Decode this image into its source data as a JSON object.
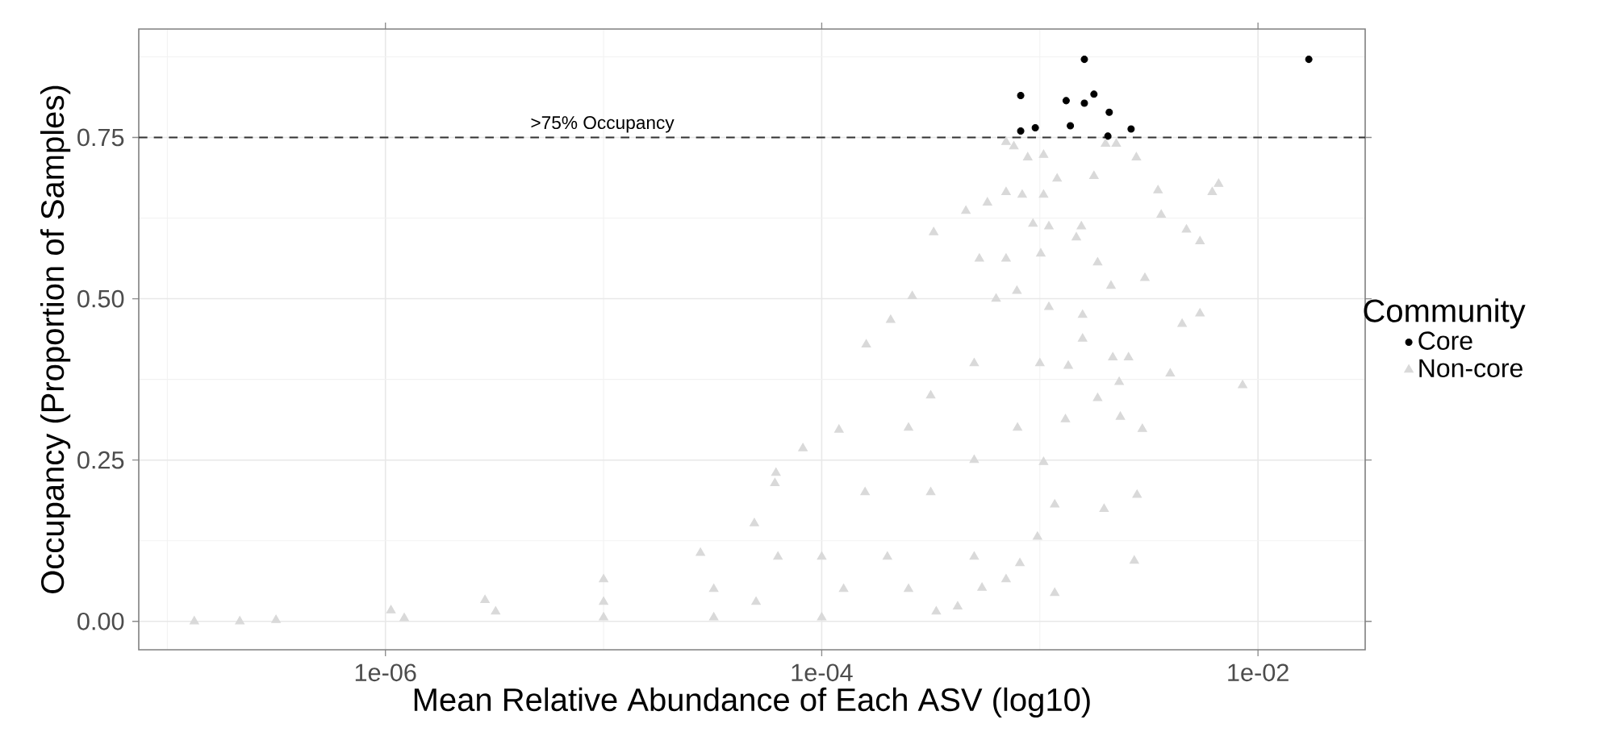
{
  "chart_data": {
    "type": "scatter",
    "xlabel": "Mean Relative Abundance of Each ASV (log10)",
    "ylabel": "Occupancy (Proportion of Samples)",
    "legend_title": "Community",
    "log": "x",
    "xlim": [
      7.4e-08,
      0.031
    ],
    "ylim": [
      -0.044,
      0.918
    ],
    "xticks": [
      {
        "value": 1e-06,
        "label": "1e-06"
      },
      {
        "value": 0.0001,
        "label": "1e-04"
      },
      {
        "value": 0.01,
        "label": "1e-02"
      }
    ],
    "yticks": [
      {
        "value": 0,
        "label": "0.00"
      },
      0.25,
      {
        "value": 0.5,
        "label": "0.50"
      },
      0.75
    ],
    "grid": true,
    "legend": "right",
    "ref_lines": [
      {
        "axis": "y",
        "value": 0.75,
        "label": ">75% Occupancy",
        "color": "#333333",
        "line_style": "dashed"
      }
    ],
    "series": [
      {
        "name": "Core",
        "color": "#000000",
        "marker": "circle",
        "x": [
          0.0016,
          0.0171,
          0.000817,
          0.00132,
          0.0016,
          0.00177,
          0.00208,
          0.000817,
          0.000953,
          0.00138,
          0.00205,
          0.00262
        ],
        "values": [
          0.871,
          0.871,
          0.815,
          0.807,
          0.803,
          0.817,
          0.789,
          0.76,
          0.765,
          0.768,
          0.752,
          0.763
        ]
      },
      {
        "name": "Non-core",
        "color": "#d9d9d9",
        "marker": "triangle",
        "x": [
          1.33e-07,
          2.15e-07,
          3.15e-07,
          1.06e-06,
          1.22e-06,
          2.86e-06,
          3.2e-06,
          1e-05,
          1e-05,
          1e-05,
          2.78e-05,
          3.2e-05,
          3.2e-05,
          4.91e-05,
          5e-05,
          6.17e-05,
          6.3e-05,
          8.2e-05,
          6.1e-05,
          0.0001,
          0.0001,
          0.00012,
          0.000126,
          0.000158,
          0.00016,
          0.0002,
          0.000207,
          0.00025,
          0.00025,
          0.00026,
          0.000316,
          0.000316,
          0.000326,
          0.000335,
          0.00042,
          0.000458,
          0.0005,
          0.0005,
          0.0005,
          0.000528,
          0.000543,
          0.000575,
          0.00063,
          0.0007,
          0.0007,
          0.0007,
          0.0007,
          0.00076,
          0.000785,
          0.00079,
          0.00081,
          0.00083,
          0.00088,
          0.00093,
          0.000975,
          0.001,
          0.00101,
          0.00104,
          0.00104,
          0.00104,
          0.0011,
          0.0011,
          0.00117,
          0.00117,
          0.0012,
          0.00131,
          0.00135,
          0.00147,
          0.00155,
          0.00157,
          0.00157,
          0.00177,
          0.00184,
          0.00184,
          0.00197,
          0.002,
          0.00212,
          0.00216,
          0.00224,
          0.00231,
          0.00234,
          0.00255,
          0.00271,
          0.00277,
          0.00279,
          0.00295,
          0.00303,
          0.00348,
          0.0036,
          0.00396,
          0.00449,
          0.0047,
          0.00542,
          0.00542,
          0.00617,
          0.0066,
          0.0085
        ],
        "values": [
          0.0,
          0.0,
          0.002,
          0.017,
          0.005,
          0.033,
          0.015,
          0.065,
          0.03,
          0.006,
          0.106,
          0.05,
          0.006,
          0.152,
          0.03,
          0.23,
          0.1,
          0.268,
          0.214,
          0.1,
          0.006,
          0.297,
          0.05,
          0.2,
          0.429,
          0.1,
          0.467,
          0.3,
          0.05,
          0.504,
          0.35,
          0.2,
          0.603,
          0.015,
          0.023,
          0.636,
          0.4,
          0.1,
          0.25,
          0.562,
          0.052,
          0.649,
          0.5,
          0.665,
          0.743,
          0.562,
          0.065,
          0.736,
          0.512,
          0.3,
          0.09,
          0.661,
          0.719,
          0.616,
          0.131,
          0.4,
          0.57,
          0.723,
          0.661,
          0.247,
          0.487,
          0.612,
          0.181,
          0.044,
          0.686,
          0.313,
          0.396,
          0.595,
          0.612,
          0.475,
          0.438,
          0.69,
          0.556,
          0.346,
          0.174,
          0.74,
          0.52,
          0.409,
          0.74,
          0.371,
          0.317,
          0.409,
          0.094,
          0.719,
          0.196,
          0.298,
          0.532,
          0.668,
          0.63,
          0.384,
          0.461,
          0.607,
          0.589,
          0.477,
          0.665,
          0.678,
          0.366
        ]
      }
    ]
  }
}
